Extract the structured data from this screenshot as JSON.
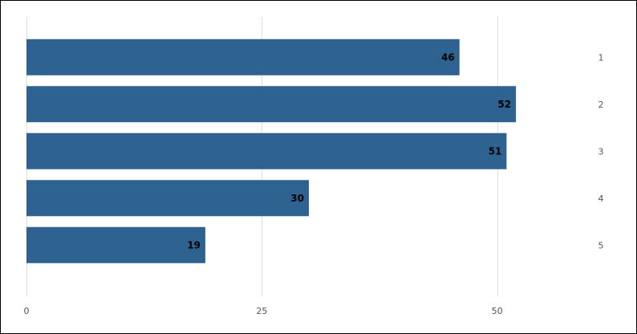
{
  "chart_data": {
    "type": "bar",
    "orientation": "horizontal",
    "categories": [
      "1",
      "2",
      "3",
      "4",
      "5"
    ],
    "values": [
      46,
      52,
      51,
      30,
      19
    ],
    "xlim": [
      0,
      60
    ],
    "xticks": [
      0,
      25,
      50
    ],
    "title": "",
    "xlabel": "",
    "ylabel": "",
    "grid": true,
    "category_axis_position": "right",
    "data_labels": true,
    "colors": {
      "bar": "#2e6290",
      "grid": "#e0e0e0",
      "tick_text": "#555555",
      "label_text": "#000000"
    }
  }
}
